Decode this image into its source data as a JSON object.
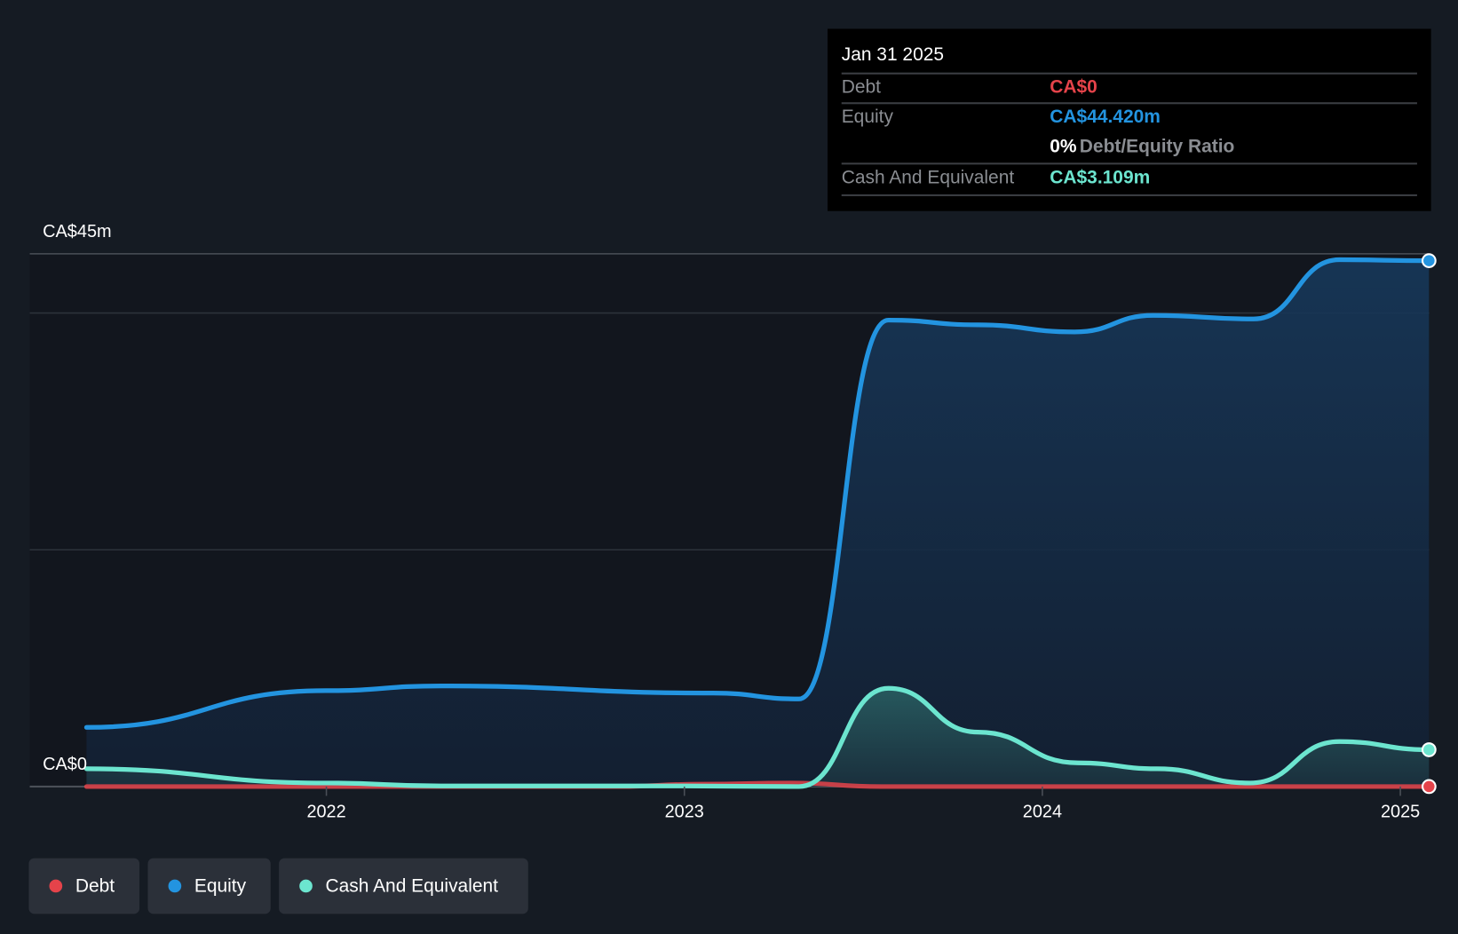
{
  "tooltip": {
    "date": "Jan 31 2025",
    "debt_label": "Debt",
    "debt_value": "CA$0",
    "equity_label": "Equity",
    "equity_value": "CA$44.420m",
    "ratio_value": "0%",
    "ratio_label": "Debt/Equity Ratio",
    "cash_label": "Cash And Equivalent",
    "cash_value": "CA$3.109m"
  },
  "legend": [
    {
      "label": "Debt",
      "color": "#e5434a"
    },
    {
      "label": "Equity",
      "color": "#2394e0"
    },
    {
      "label": "Cash And Equivalent",
      "color": "#6ce5cf"
    }
  ],
  "chart_data": {
    "type": "area",
    "ylabel_top": "CA$45m",
    "ylabel_bottom": "CA$0",
    "ylim": [
      0,
      45
    ],
    "xlim": [
      2021.15,
      2025.08
    ],
    "gridlines": [
      20,
      40,
      45
    ],
    "x_ticks": [
      {
        "value": 2022,
        "label": "2022"
      },
      {
        "value": 2023,
        "label": "2023"
      },
      {
        "value": 2024,
        "label": "2024"
      },
      {
        "value": 2025,
        "label": "2025"
      }
    ],
    "series": [
      {
        "name": "Equity",
        "color": "#2394e0",
        "points": [
          [
            2021.33,
            5.0
          ],
          [
            2022.0,
            8.1
          ],
          [
            2022.32,
            8.5
          ],
          [
            2023.08,
            7.9
          ],
          [
            2023.32,
            7.4
          ],
          [
            2023.57,
            39.4
          ],
          [
            2023.82,
            39.0
          ],
          [
            2024.09,
            38.4
          ],
          [
            2024.31,
            39.8
          ],
          [
            2024.59,
            39.5
          ],
          [
            2024.83,
            44.5
          ],
          [
            2025.08,
            44.42
          ]
        ]
      },
      {
        "name": "Cash And Equivalent",
        "color": "#6ce5cf",
        "points": [
          [
            2021.33,
            1.5
          ],
          [
            2022.0,
            0.3
          ],
          [
            2022.32,
            0.05
          ],
          [
            2023.0,
            0.05
          ],
          [
            2023.32,
            0.0
          ],
          [
            2023.57,
            8.3
          ],
          [
            2023.82,
            4.6
          ],
          [
            2024.1,
            2.0
          ],
          [
            2024.32,
            1.5
          ],
          [
            2024.58,
            0.3
          ],
          [
            2024.83,
            3.8
          ],
          [
            2025.08,
            3.109
          ]
        ]
      },
      {
        "name": "Debt",
        "color": "#e5434a",
        "points": [
          [
            2021.33,
            0
          ],
          [
            2022.8,
            0
          ],
          [
            2023.05,
            0.2
          ],
          [
            2023.3,
            0.3
          ],
          [
            2023.55,
            0
          ],
          [
            2025.08,
            0
          ]
        ]
      }
    ]
  }
}
